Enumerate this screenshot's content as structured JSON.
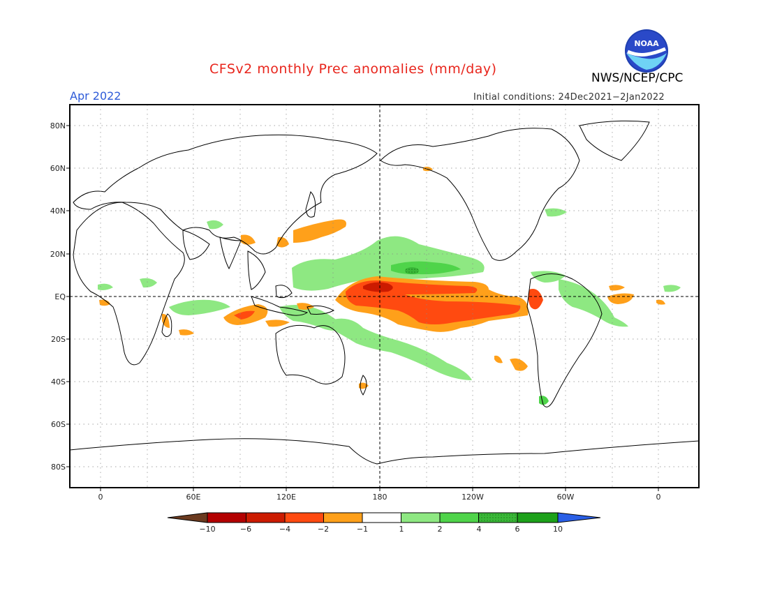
{
  "header": {
    "title": "CFSv2 monthly Prec anomalies (mm/day)",
    "agency": "NWS/NCEP/CPC",
    "month": "Apr 2022",
    "initial_conditions": "Initial conditions: 24Dec2021−2Jan2022"
  },
  "logo": {
    "text": "NOAA"
  },
  "axes": {
    "lat_labels": [
      "80N",
      "60N",
      "40N",
      "20N",
      "EQ",
      "20S",
      "40S",
      "60S",
      "80S"
    ],
    "lon_labels": [
      "0",
      "60E",
      "120E",
      "180",
      "120W",
      "60W",
      "0"
    ]
  },
  "colorbar": {
    "labels": [
      "−10",
      "−6",
      "−4",
      "−2",
      "−1",
      "1",
      "2",
      "4",
      "6",
      "10"
    ],
    "colors": [
      "#6b3a1f",
      "#b30000",
      "#cc1b00",
      "#ff4a10",
      "#ffa01a",
      "#ffffff",
      "#8ee882",
      "#4fd44a",
      "#3ab838",
      "#1da11a",
      "#2a5fe6"
    ]
  },
  "colors": {
    "title": "#e8251c",
    "month": "#2e5bd8",
    "dry_light": "#ffa01a",
    "dry_medium": "#ff4a10",
    "dry_strong": "#cc1b00",
    "wet_light": "#8ee882",
    "wet_medium": "#4fd44a"
  }
}
